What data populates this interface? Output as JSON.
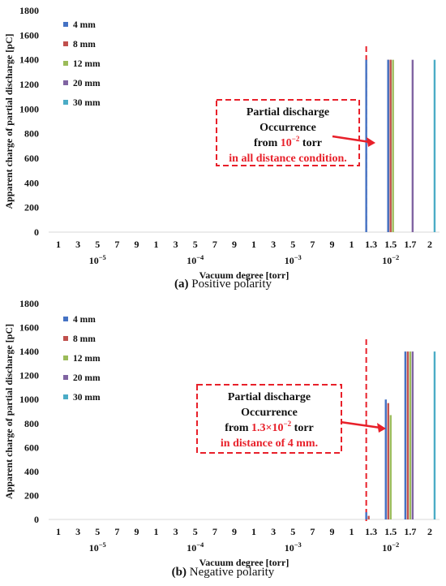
{
  "figure": {
    "panels": [
      {
        "caption_label": "(a)",
        "caption_text": "Positive polarity"
      },
      {
        "caption_label": "(b)",
        "caption_text": "Negative polarity"
      }
    ]
  },
  "colors": {
    "4 mm": "#4472c4",
    "8 mm": "#c0504d",
    "12 mm": "#9bbb59",
    "20 mm": "#8064a2",
    "30 mm": "#4bacc6",
    "annotation_red": "#e8202a"
  },
  "chart_data": [
    {
      "type": "bar",
      "title": "",
      "xlabel": "Vacuum degree [torr]",
      "ylabel": "Apparent charge of partial discharge [pC]",
      "ylim": [
        0,
        1800
      ],
      "yticks": [
        0,
        200,
        400,
        600,
        800,
        1000,
        1200,
        1400,
        1600,
        1800
      ],
      "categories": [
        "1",
        "3",
        "5",
        "7",
        "9",
        "1",
        "3",
        "5",
        "7",
        "9",
        "1",
        "3",
        "5",
        "7",
        "9",
        "1",
        "1.3",
        "1.5",
        "1.7",
        "2"
      ],
      "decade_labels": [
        {
          "base": "10",
          "exp": "−5",
          "category_index": 2
        },
        {
          "base": "10",
          "exp": "−4",
          "category_index": 7
        },
        {
          "base": "10",
          "exp": "−3",
          "category_index": 12
        },
        {
          "base": "10",
          "exp": "−2",
          "category_index": 17
        }
      ],
      "series": [
        {
          "name": "4 mm",
          "values": [
            0,
            0,
            0,
            0,
            0,
            0,
            0,
            0,
            0,
            0,
            0,
            0,
            0,
            0,
            0,
            0,
            1400,
            0,
            0,
            0
          ]
        },
        {
          "name": "8 mm",
          "values": [
            0,
            0,
            0,
            0,
            0,
            0,
            0,
            0,
            0,
            0,
            0,
            0,
            0,
            0,
            0,
            0,
            0,
            1400,
            0,
            0
          ]
        },
        {
          "name": "12 mm",
          "values": [
            0,
            0,
            0,
            0,
            0,
            0,
            0,
            0,
            0,
            0,
            0,
            0,
            0,
            0,
            0,
            0,
            0,
            1400,
            0,
            0
          ]
        },
        {
          "name": "20 mm",
          "values": [
            0,
            0,
            0,
            0,
            0,
            0,
            0,
            0,
            0,
            0,
            0,
            0,
            0,
            0,
            0,
            0,
            0,
            0,
            1400,
            0
          ]
        },
        {
          "name": "30 mm",
          "values": [
            0,
            0,
            0,
            0,
            0,
            0,
            0,
            0,
            0,
            0,
            0,
            0,
            0,
            0,
            0,
            0,
            0,
            0,
            0,
            1400
          ]
        }
      ],
      "extra_bars": [
        {
          "series": "4 mm",
          "category_index": 16,
          "value": 1400
        },
        {
          "series": "8 mm",
          "category_index": 16,
          "value": 1400
        },
        {
          "series": "12 mm",
          "category_index": 16,
          "value": 1400
        }
      ],
      "threshold_line": {
        "category_index": 16,
        "style": "dashed red"
      },
      "legend": {
        "position": "top-left",
        "entries": [
          "4 mm",
          "8 mm",
          "12 mm",
          "20 mm",
          "30 mm"
        ]
      },
      "annotation": {
        "lines": [
          {
            "text": "Partial discharge",
            "highlight": ""
          },
          {
            "text": "Occurrence",
            "highlight": ""
          },
          {
            "prefix": "from ",
            "highlight_base": "10",
            "highlight_exp": "−2",
            "suffix": " torr"
          },
          {
            "text": "",
            "highlight": "in all distance condition."
          }
        ]
      }
    },
    {
      "type": "bar",
      "title": "",
      "xlabel": "Vacuum degree [torr]",
      "ylabel": "Apparent charge of partial discharge [pC]",
      "ylim": [
        0,
        1800
      ],
      "yticks": [
        0,
        200,
        400,
        600,
        800,
        1000,
        1200,
        1400,
        1600,
        1800
      ],
      "categories": [
        "1",
        "3",
        "5",
        "7",
        "9",
        "1",
        "3",
        "5",
        "7",
        "9",
        "1",
        "3",
        "5",
        "7",
        "9",
        "1",
        "1.3",
        "1.5",
        "1.7",
        "2"
      ],
      "decade_labels": [
        {
          "base": "10",
          "exp": "−5",
          "category_index": 2
        },
        {
          "base": "10",
          "exp": "−4",
          "category_index": 7
        },
        {
          "base": "10",
          "exp": "−3",
          "category_index": 12
        },
        {
          "base": "10",
          "exp": "−2",
          "category_index": 17
        }
      ],
      "series": [
        {
          "name": "4 mm",
          "values": [
            0,
            0,
            0,
            0,
            0,
            0,
            0,
            0,
            0,
            0,
            0,
            0,
            0,
            0,
            0,
            0,
            60,
            1000,
            1400,
            0
          ]
        },
        {
          "name": "8 mm",
          "values": [
            0,
            0,
            0,
            0,
            0,
            0,
            0,
            0,
            0,
            0,
            0,
            0,
            0,
            0,
            0,
            0,
            30,
            970,
            1400,
            0
          ]
        },
        {
          "name": "12 mm",
          "values": [
            0,
            0,
            0,
            0,
            0,
            0,
            0,
            0,
            0,
            0,
            0,
            0,
            0,
            0,
            0,
            0,
            0,
            870,
            1400,
            0
          ]
        },
        {
          "name": "20 mm",
          "values": [
            0,
            0,
            0,
            0,
            0,
            0,
            0,
            0,
            0,
            0,
            0,
            0,
            0,
            0,
            0,
            0,
            0,
            0,
            1400,
            0
          ]
        },
        {
          "name": "30 mm",
          "values": [
            0,
            0,
            0,
            0,
            0,
            0,
            0,
            0,
            0,
            0,
            0,
            0,
            0,
            0,
            0,
            0,
            0,
            0,
            0,
            1400
          ]
        }
      ],
      "threshold_line": {
        "category_index": 16,
        "style": "dashed red"
      },
      "legend": {
        "position": "top-left",
        "entries": [
          "4 mm",
          "8 mm",
          "12 mm",
          "20 mm",
          "30 mm"
        ]
      },
      "annotation": {
        "lines": [
          {
            "text": "Partial discharge",
            "highlight": ""
          },
          {
            "text": "Occurrence",
            "highlight": ""
          },
          {
            "prefix": "from ",
            "highlight_base": "1.3×10",
            "highlight_exp": "−2",
            "suffix": " torr"
          },
          {
            "text": "",
            "highlight": "in distance of 4 mm."
          }
        ]
      }
    }
  ]
}
